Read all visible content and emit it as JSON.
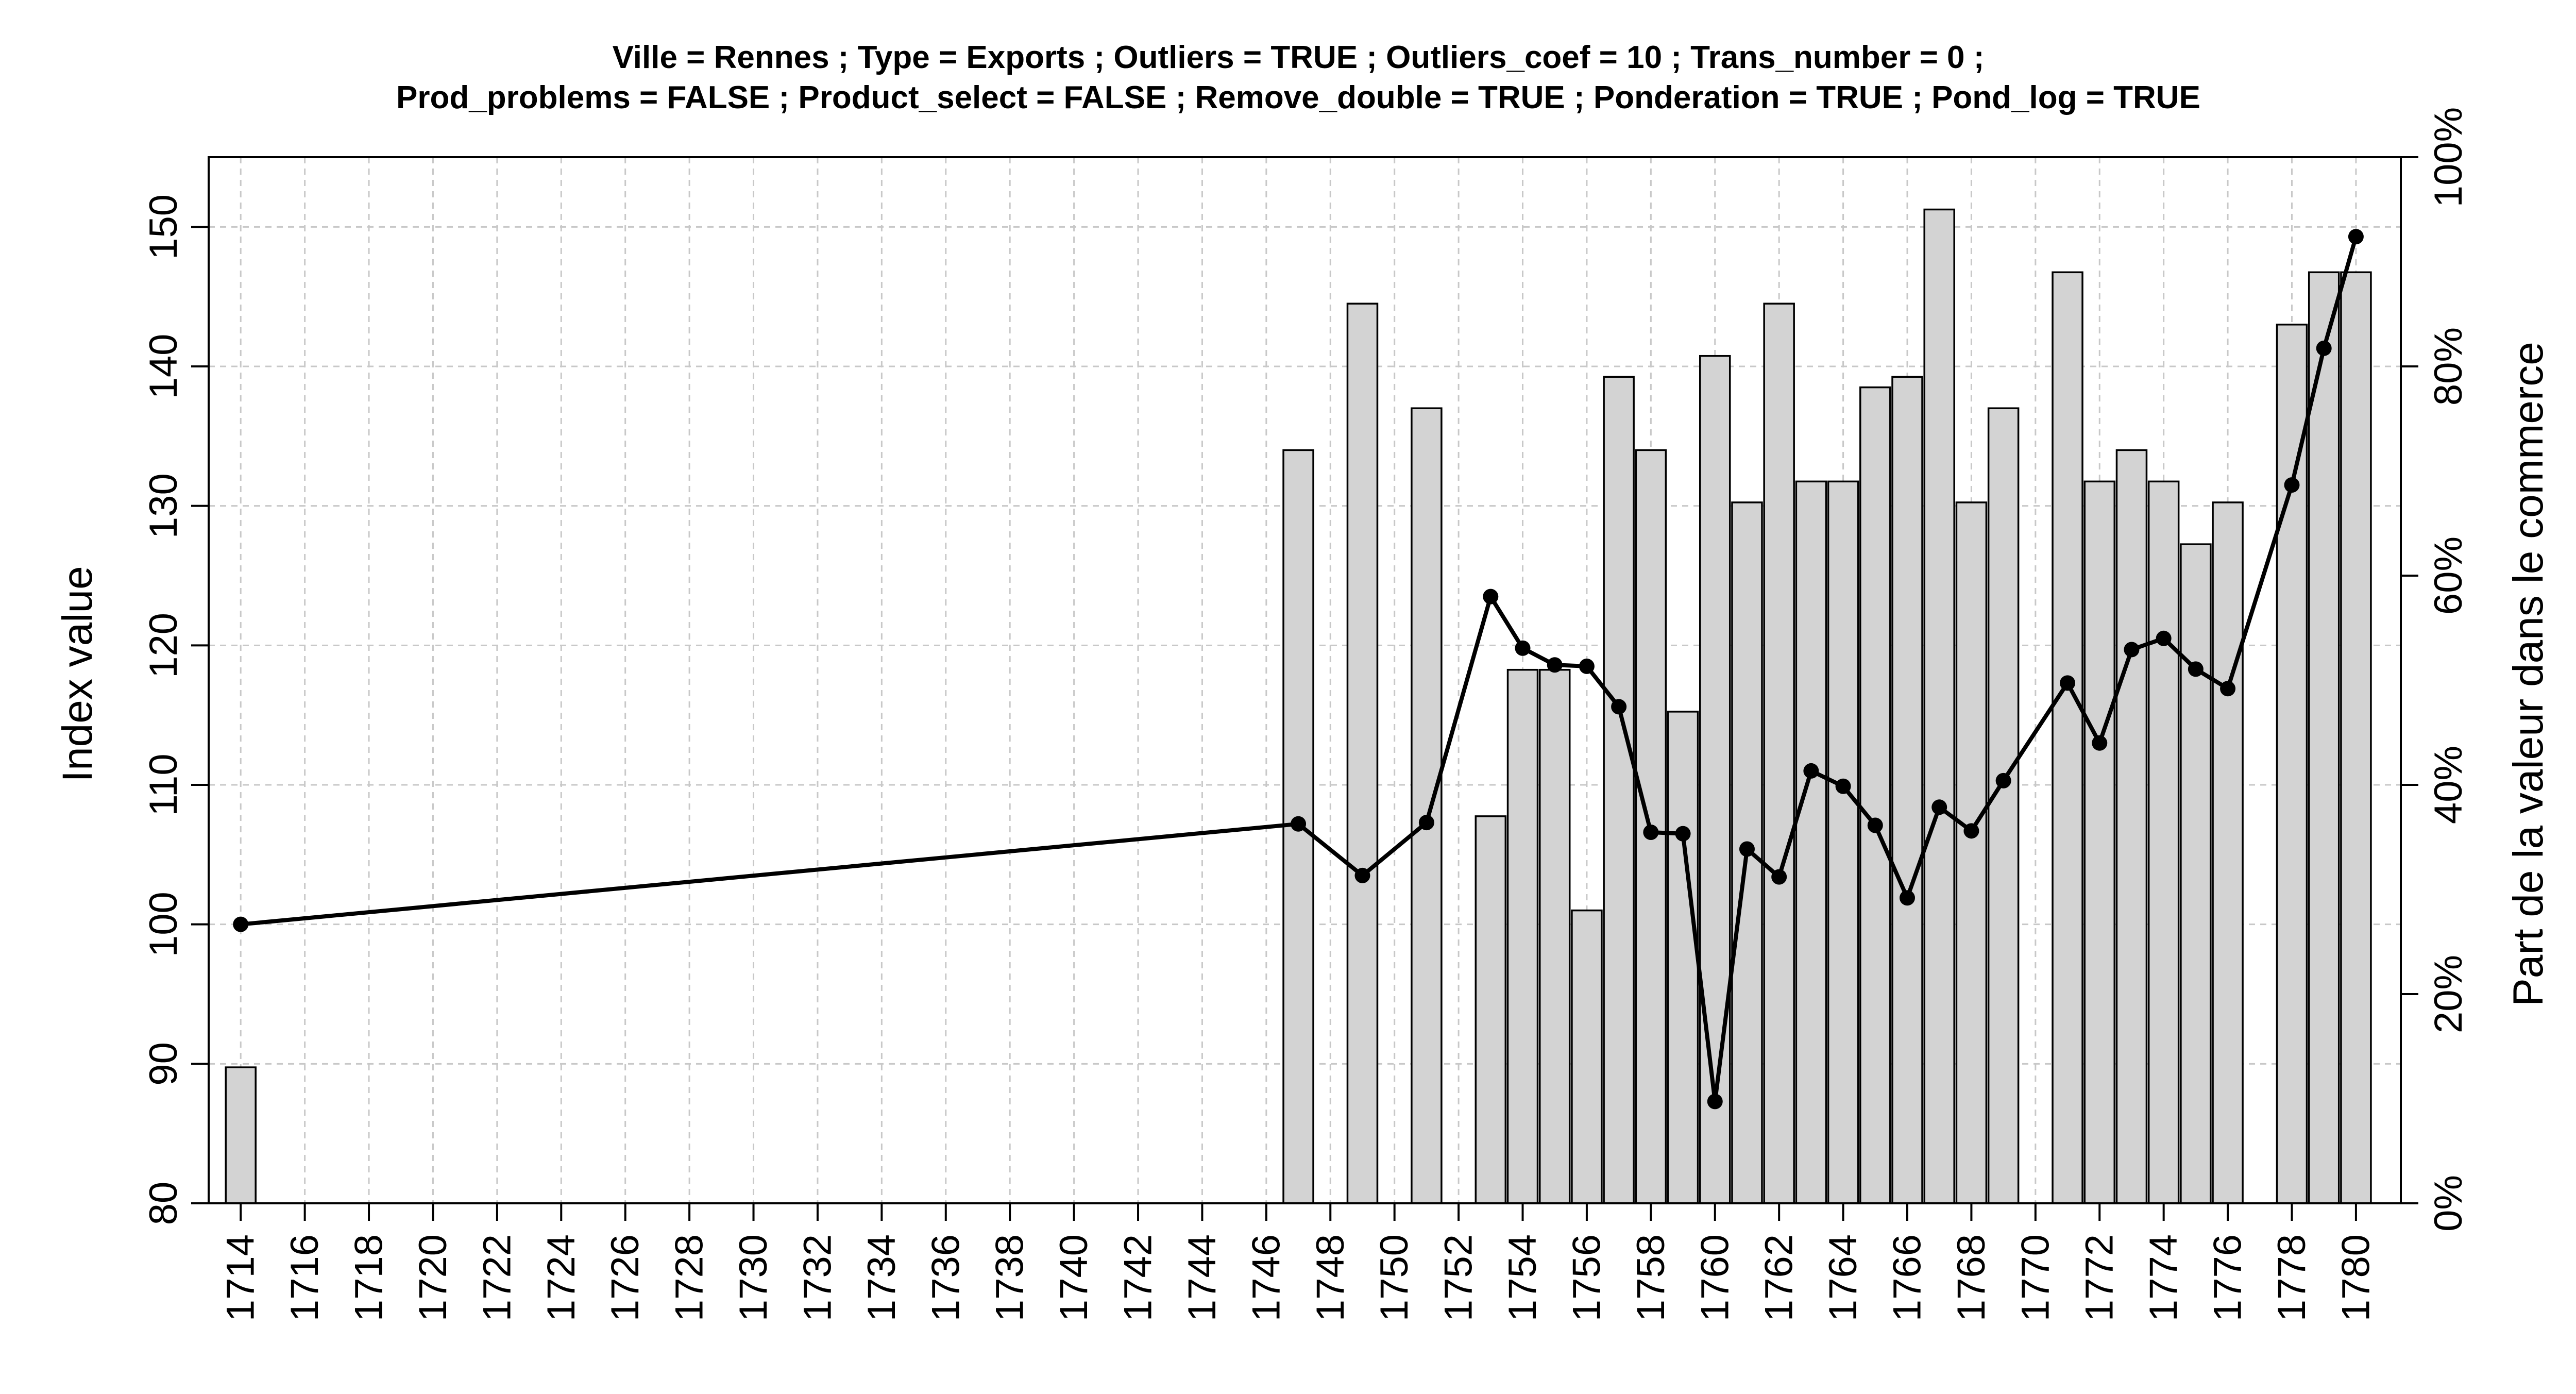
{
  "chart_data": {
    "type": "bar",
    "title_lines": [
      "Ville = Rennes ; Type = Exports ; Outliers = TRUE ; Outliers_coef = 10 ; Trans_number = 0 ;",
      "Prod_problems = FALSE ; Product_select = FALSE ; Remove_double = TRUE ; Ponderation = TRUE ; Pond_log = TRUE"
    ],
    "ylabel_left": "Index value",
    "ylabel_right": "Part de la valeur dans le commerce",
    "x_ticks": [
      1714,
      1716,
      1718,
      1720,
      1722,
      1724,
      1726,
      1728,
      1730,
      1732,
      1734,
      1736,
      1738,
      1740,
      1742,
      1744,
      1746,
      1748,
      1750,
      1752,
      1754,
      1756,
      1758,
      1760,
      1762,
      1764,
      1766,
      1768,
      1770,
      1772,
      1774,
      1776,
      1778,
      1780
    ],
    "xlim": [
      1713,
      1781.4
    ],
    "y_left_ticks": [
      80,
      90,
      100,
      110,
      120,
      130,
      140,
      150
    ],
    "ylim_left": [
      80,
      155
    ],
    "y_right_ticks": [
      "0%",
      "20%",
      "40%",
      "60%",
      "80%",
      "100%"
    ],
    "y_right_values": [
      0,
      20,
      40,
      60,
      80,
      100
    ],
    "ylim_right": [
      0,
      100
    ],
    "grid": true,
    "colors": {
      "bar_fill": "#d3d3d3",
      "bar_stroke": "#000000",
      "line": "#000000",
      "grid": "#c8c8c8"
    },
    "series": [
      {
        "type": "bar",
        "axis": "right",
        "x": [
          1714,
          1747,
          1749,
          1751,
          1753,
          1754,
          1755,
          1756,
          1757,
          1758,
          1759,
          1760,
          1761,
          1762,
          1763,
          1764,
          1765,
          1766,
          1767,
          1768,
          1769,
          1771,
          1772,
          1773,
          1774,
          1775,
          1776,
          1778,
          1779,
          1780
        ],
        "values": [
          13,
          72,
          86,
          76,
          37,
          51,
          51,
          28,
          79,
          72,
          47,
          81,
          67,
          86,
          69,
          69,
          78,
          79,
          95,
          67,
          76,
          89,
          69,
          72,
          69,
          63,
          67,
          84,
          89,
          89
        ]
      },
      {
        "type": "line",
        "axis": "left",
        "x": [
          1714,
          1747,
          1749,
          1751,
          1753,
          1754,
          1755,
          1756,
          1757,
          1758,
          1759,
          1760,
          1761,
          1762,
          1763,
          1764,
          1765,
          1766,
          1767,
          1768,
          1769,
          1771,
          1772,
          1773,
          1774,
          1775,
          1776,
          1778,
          1779,
          1780
        ],
        "values": [
          100,
          107.2,
          103.5,
          107.3,
          123.5,
          119.8,
          118.6,
          118.5,
          115.6,
          106.6,
          106.5,
          87.3,
          105.4,
          103.4,
          111.0,
          109.9,
          107.1,
          101.9,
          108.4,
          106.7,
          110.3,
          117.3,
          113.0,
          119.7,
          120.5,
          118.3,
          116.9,
          131.5,
          141.3,
          149.3
        ]
      }
    ]
  }
}
